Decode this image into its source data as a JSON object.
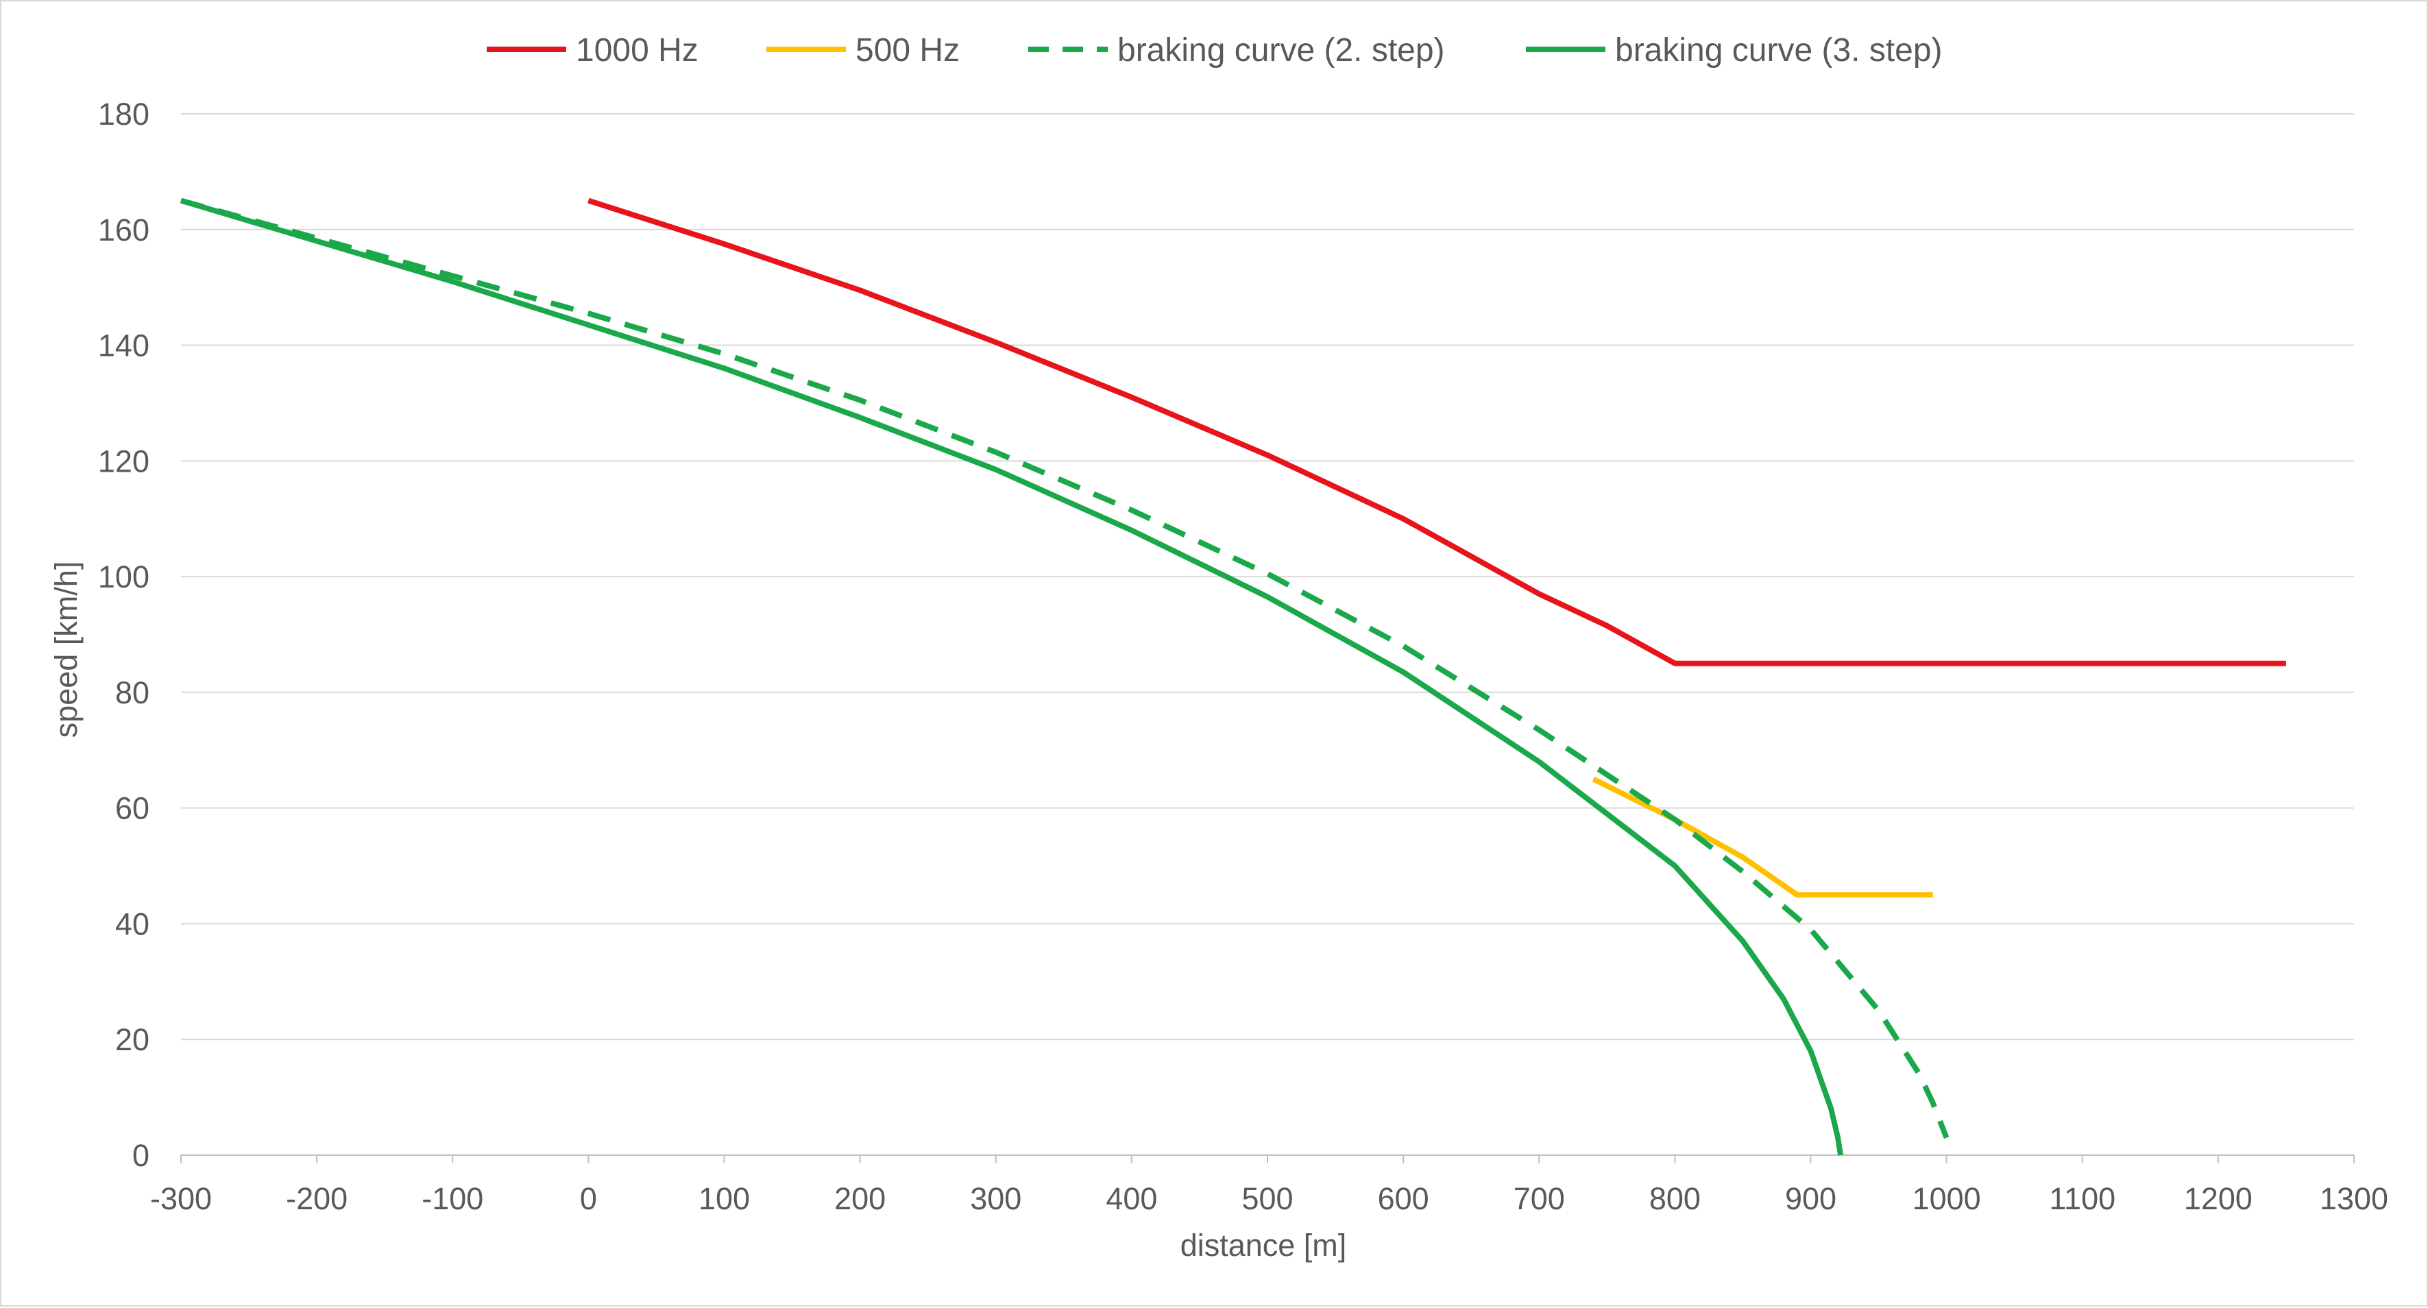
{
  "chart_data": {
    "type": "line",
    "title": "",
    "xlabel": "distance [m]",
    "ylabel": "speed [km/h]",
    "xlim": [
      -300,
      1300
    ],
    "ylim": [
      0,
      180
    ],
    "xticks": [
      -300,
      -200,
      -100,
      0,
      100,
      200,
      300,
      400,
      500,
      600,
      700,
      800,
      900,
      1000,
      1100,
      1200,
      1300
    ],
    "yticks": [
      0,
      20,
      40,
      60,
      80,
      100,
      120,
      140,
      160,
      180
    ],
    "grid": "horizontal",
    "legend_position": "top",
    "series": [
      {
        "name": "1000 Hz",
        "color": "#e8141b",
        "dash": "solid",
        "x": [
          0,
          100,
          200,
          300,
          400,
          500,
          600,
          700,
          750,
          800,
          900,
          1000,
          1100,
          1250
        ],
        "y": [
          165,
          157.5,
          149.5,
          140.5,
          131,
          121,
          110,
          97,
          91.5,
          85,
          85,
          85,
          85,
          85
        ]
      },
      {
        "name": "500 Hz",
        "color": "#ffc000",
        "dash": "solid",
        "x": [
          740,
          800,
          850,
          890,
          950,
          990
        ],
        "y": [
          65,
          58,
          51.5,
          45,
          45,
          45
        ]
      },
      {
        "name": "braking curve (2. step)",
        "color": "#1aa84a",
        "dash": "dashed",
        "x": [
          -300,
          -200,
          -100,
          0,
          100,
          200,
          300,
          400,
          500,
          600,
          700,
          800,
          850,
          900,
          950,
          980,
          990,
          1000
        ],
        "y": [
          165,
          158.5,
          152,
          145.5,
          138.5,
          130.5,
          121.5,
          111.5,
          100.5,
          88,
          73.5,
          58,
          49,
          39,
          25,
          14,
          9,
          3
        ]
      },
      {
        "name": "braking curve (3. step)",
        "color": "#1aa84a",
        "dash": "solid",
        "x": [
          -300,
          -200,
          -100,
          0,
          100,
          200,
          300,
          400,
          500,
          600,
          700,
          750,
          800,
          850,
          880,
          900,
          915,
          920,
          922
        ],
        "y": [
          165,
          158,
          151,
          143.5,
          136,
          127.5,
          118.5,
          108,
          96.5,
          83.5,
          68,
          59,
          50,
          37,
          27,
          18,
          8,
          3,
          0
        ]
      }
    ]
  }
}
